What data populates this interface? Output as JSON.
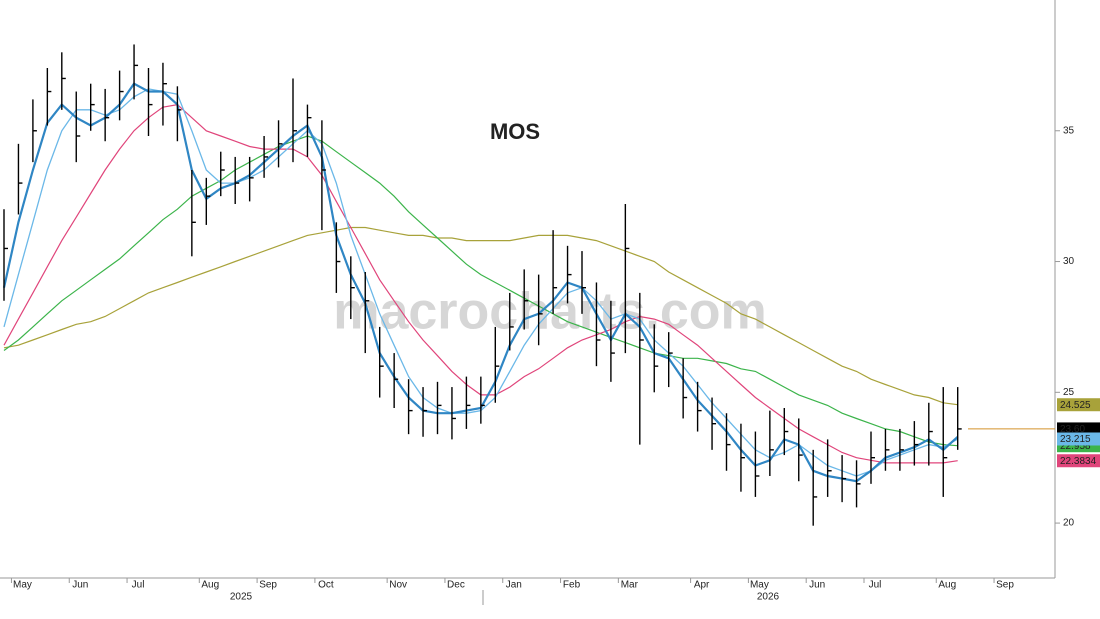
{
  "chart_data": {
    "type": "ohlc",
    "title": "MOS",
    "watermark": "macrocharts.com",
    "categories": [
      null,
      "May",
      null,
      null,
      null,
      "Jun",
      null,
      null,
      null,
      "Jul",
      null,
      null,
      null,
      null,
      "Aug",
      null,
      null,
      null,
      "Sep",
      null,
      null,
      null,
      "Oct",
      null,
      null,
      null,
      null,
      "Nov",
      null,
      null,
      null,
      "Dec",
      null,
      null,
      null,
      "Jan",
      null,
      null,
      null,
      "Feb",
      null,
      null,
      null,
      "Mar",
      null,
      null,
      null,
      null,
      "Apr",
      null,
      null,
      null,
      "May",
      null,
      null,
      null,
      "Jun",
      null,
      null,
      null,
      "Jul",
      null,
      null,
      null,
      null,
      "Aug",
      null,
      null,
      null,
      "Sep",
      null,
      null
    ],
    "year_labels": [
      "2025",
      "2026"
    ],
    "ylim": [
      17.9,
      40.0
    ],
    "yticks": [
      20,
      25,
      30,
      35
    ],
    "price": {
      "color": "#000000",
      "high": [
        32.0,
        34.5,
        36.2,
        37.4,
        38.0,
        36.5,
        36.8,
        36.6,
        37.3,
        38.3,
        37.4,
        37.6,
        36.7,
        33.5,
        33.2,
        34.2,
        34.0,
        34.0,
        34.8,
        35.4,
        37.0,
        36.0,
        35.4,
        31.5,
        30.2,
        29.6,
        27.5,
        26.5,
        25.5,
        25.2,
        25.4,
        25.2,
        25.6,
        25.6,
        27.5,
        28.8,
        29.7,
        29.5,
        31.2,
        30.6,
        30.4,
        29.2,
        28.5,
        32.2,
        28.8,
        27.6,
        27.3,
        26.3,
        25.4,
        24.8,
        24.2,
        23.8,
        23.5,
        24.3,
        24.4,
        24.0,
        22.8,
        23.2,
        22.6,
        22.4,
        23.5,
        23.6,
        23.6,
        23.9,
        24.6,
        25.2,
        25.2,
        null,
        null,
        null,
        null,
        null
      ],
      "low": [
        28.5,
        31.8,
        33.8,
        35.2,
        35.8,
        33.8,
        35.0,
        34.6,
        35.4,
        36.2,
        34.8,
        35.2,
        34.6,
        30.2,
        31.4,
        32.5,
        32.2,
        32.3,
        33.2,
        33.6,
        33.8,
        34.0,
        31.2,
        28.8,
        27.8,
        26.5,
        24.8,
        24.4,
        23.4,
        23.3,
        23.4,
        23.2,
        23.6,
        23.8,
        24.6,
        26.6,
        27.4,
        26.8,
        28.0,
        28.4,
        28.0,
        26.0,
        25.4,
        26.5,
        23.0,
        25.0,
        25.2,
        24.0,
        23.5,
        22.8,
        22.0,
        21.2,
        21.0,
        21.8,
        22.6,
        21.6,
        19.9,
        21.0,
        20.8,
        20.6,
        21.5,
        22.0,
        22.0,
        22.2,
        22.2,
        21.0,
        22.8,
        null,
        null,
        null,
        null,
        null
      ],
      "close": [
        30.5,
        33.0,
        35.0,
        36.5,
        37.0,
        34.8,
        36.0,
        35.5,
        36.5,
        37.5,
        36.0,
        36.8,
        35.8,
        31.5,
        32.5,
        33.5,
        33.0,
        33.2,
        34.0,
        34.5,
        35.0,
        35.5,
        33.5,
        30.0,
        29.0,
        28.5,
        26.0,
        25.5,
        24.3,
        24.3,
        24.5,
        24.0,
        24.5,
        24.5,
        26.0,
        27.5,
        28.5,
        28.0,
        29.0,
        29.5,
        29.0,
        27.0,
        26.5,
        30.5,
        27.0,
        26.0,
        26.5,
        24.8,
        24.3,
        23.8,
        23.0,
        22.5,
        21.8,
        22.8,
        23.5,
        22.6,
        21.0,
        22.0,
        21.7,
        21.5,
        22.5,
        22.8,
        22.8,
        23.0,
        23.5,
        22.5,
        23.6,
        null,
        null,
        null,
        null,
        null
      ],
      "last": {
        "value": 23.6,
        "label": "23.60"
      },
      "last_color": "#d4922a"
    },
    "series": [
      {
        "color": "#a8a23a",
        "values": [
          26.7,
          26.8,
          27.0,
          27.2,
          27.4,
          27.6,
          27.7,
          27.9,
          28.2,
          28.5,
          28.8,
          29.0,
          29.2,
          29.4,
          29.6,
          29.8,
          30.0,
          30.2,
          30.4,
          30.6,
          30.8,
          31.0,
          31.1,
          31.2,
          31.3,
          31.3,
          31.2,
          31.1,
          31.0,
          31.0,
          30.9,
          30.9,
          30.8,
          30.8,
          30.8,
          30.8,
          30.9,
          31.0,
          31.0,
          31.0,
          30.9,
          30.8,
          30.6,
          30.4,
          30.2,
          30.0,
          29.6,
          29.3,
          29.0,
          28.7,
          28.4,
          28.0,
          27.8,
          27.5,
          27.2,
          26.9,
          26.6,
          26.3,
          26.0,
          25.8,
          25.5,
          25.3,
          25.1,
          24.9,
          24.8,
          24.6,
          24.525,
          null,
          null,
          null,
          null,
          null
        ],
        "last": 24.525
      },
      {
        "color": "#3cb44b",
        "values": [
          26.6,
          27.0,
          27.5,
          28.0,
          28.5,
          28.9,
          29.3,
          29.7,
          30.1,
          30.6,
          31.1,
          31.6,
          32.0,
          32.5,
          32.8,
          33.1,
          33.5,
          33.8,
          34.1,
          34.4,
          34.6,
          34.8,
          34.6,
          34.2,
          33.8,
          33.4,
          33.0,
          32.5,
          31.9,
          31.4,
          30.9,
          30.4,
          29.9,
          29.5,
          29.2,
          28.9,
          28.6,
          28.3,
          28.0,
          27.7,
          27.5,
          27.3,
          27.1,
          26.9,
          26.7,
          26.5,
          26.4,
          26.3,
          26.3,
          26.2,
          26.1,
          25.9,
          25.8,
          25.5,
          25.2,
          24.9,
          24.7,
          24.5,
          24.2,
          24.0,
          23.8,
          23.6,
          23.5,
          23.3,
          23.1,
          23.0,
          22.958,
          null,
          null,
          null,
          null,
          null
        ],
        "last": 22.958
      },
      {
        "color": "#e0457b",
        "values": [
          26.8,
          27.8,
          28.8,
          29.8,
          30.8,
          31.7,
          32.6,
          33.5,
          34.3,
          35.0,
          35.5,
          35.9,
          36.0,
          35.5,
          35.0,
          34.8,
          34.6,
          34.4,
          34.3,
          34.3,
          34.3,
          34.0,
          33.3,
          32.3,
          31.3,
          30.3,
          29.3,
          28.5,
          27.7,
          27.0,
          26.4,
          25.8,
          25.3,
          24.9,
          24.9,
          25.2,
          25.6,
          25.9,
          26.3,
          26.7,
          27.0,
          27.2,
          27.4,
          27.7,
          27.9,
          27.8,
          27.6,
          27.2,
          26.8,
          26.3,
          25.8,
          25.3,
          24.8,
          24.4,
          24.0,
          23.6,
          23.3,
          23.0,
          22.7,
          22.5,
          22.4,
          22.3,
          22.3,
          22.3,
          22.3,
          22.3,
          22.3834,
          null,
          null,
          null,
          null,
          null
        ],
        "last": 22.3834
      },
      {
        "color": "#6bb8e8",
        "values": [
          27.5,
          29.5,
          31.5,
          33.5,
          35.0,
          35.8,
          35.8,
          35.6,
          35.8,
          36.3,
          36.6,
          36.5,
          36.4,
          35.0,
          33.5,
          33.0,
          33.0,
          33.2,
          33.5,
          34.0,
          34.5,
          35.0,
          34.5,
          33.0,
          31.0,
          29.5,
          28.0,
          26.8,
          25.6,
          24.8,
          24.4,
          24.2,
          24.2,
          24.3,
          24.8,
          25.8,
          26.8,
          27.6,
          28.2,
          28.8,
          29.0,
          28.5,
          27.8,
          28.0,
          27.8,
          27.0,
          26.5,
          26.0,
          25.3,
          24.6,
          24.0,
          23.4,
          22.8,
          22.5,
          22.7,
          23.0,
          22.6,
          22.2,
          22.0,
          21.8,
          22.0,
          22.4,
          22.6,
          22.8,
          23.0,
          22.9,
          23.215,
          null,
          null,
          null,
          null,
          null
        ],
        "last": 23.215
      },
      {
        "color": "#2f86c4",
        "values": [
          29.0,
          31.5,
          33.5,
          35.3,
          36.0,
          35.5,
          35.2,
          35.5,
          36.0,
          36.8,
          36.5,
          36.5,
          36.0,
          33.5,
          32.4,
          32.8,
          33.0,
          33.3,
          33.8,
          34.3,
          34.8,
          35.2,
          34.0,
          31.0,
          29.5,
          28.4,
          26.5,
          25.6,
          24.8,
          24.3,
          24.2,
          24.2,
          24.3,
          24.4,
          25.4,
          26.8,
          27.8,
          28.0,
          28.5,
          29.2,
          29.0,
          28.0,
          27.0,
          28.0,
          27.5,
          26.5,
          26.3,
          25.5,
          24.7,
          24.1,
          23.5,
          22.8,
          22.2,
          22.4,
          23.2,
          23.0,
          22.0,
          21.8,
          21.7,
          21.6,
          22.0,
          22.5,
          22.7,
          22.9,
          23.2,
          22.8,
          23.3,
          null,
          null,
          null,
          null,
          null
        ]
      }
    ]
  }
}
